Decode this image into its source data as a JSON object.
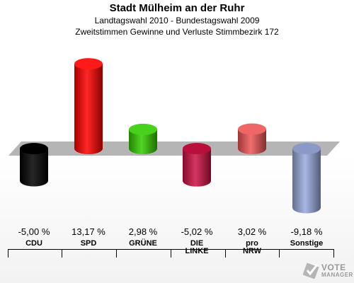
{
  "header": {
    "title": "Stadt Mülheim an der Ruhr",
    "subtitle1": "Landtagswahl 2010 - Bundestagswahl 2009",
    "subtitle2": "Zweitstimmen Gewinne und Verluste Stimmbezirk 172"
  },
  "chart_data": {
    "type": "bar",
    "title": "Stadt Mülheim an der Ruhr",
    "categories": [
      "CDU",
      "SPD",
      "GRÜNE",
      "DIE LINKE",
      "pro NRW",
      "Sonstige"
    ],
    "category_lines": [
      [
        "CDU"
      ],
      [
        "SPD"
      ],
      [
        "GRÜNE"
      ],
      [
        "DIE",
        "LINKE"
      ],
      [
        "pro",
        "NRW"
      ],
      [
        "Sonstige"
      ]
    ],
    "values": [
      -5.0,
      13.17,
      2.98,
      -5.02,
      3.02,
      -9.18
    ],
    "value_labels": [
      "-5,00 %",
      "13,17 %",
      "2,98 %",
      "-5,02 %",
      "3,02 %",
      "-9,18 %"
    ],
    "colors": [
      "#000000",
      "#ff0000",
      "#33cc00",
      "#cc1144",
      "#ee5555",
      "#99aadd"
    ],
    "unit": "%",
    "grid": false,
    "legend": "none"
  },
  "branding": {
    "logo_line1": "VOTE",
    "logo_line2": "MANAGER"
  }
}
